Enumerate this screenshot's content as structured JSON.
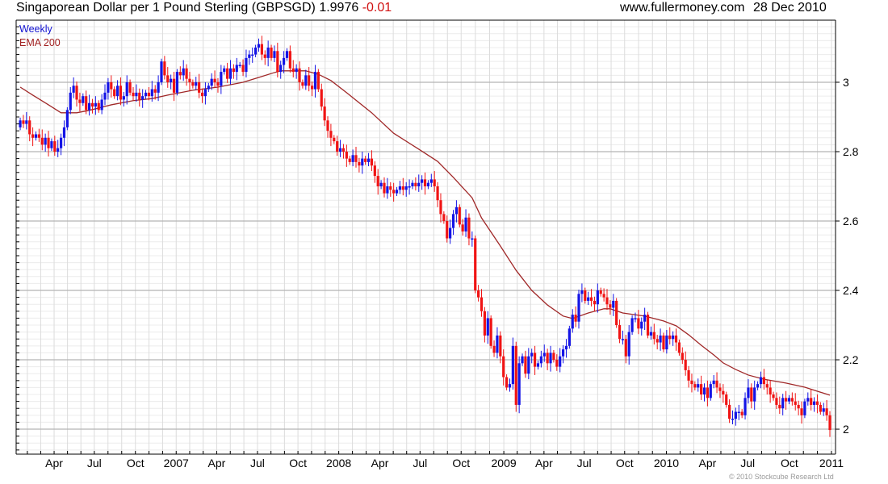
{
  "header": {
    "title": "Singaporean Dollar per 1 Pound Sterling (GBPSGD)",
    "last": "1.9976",
    "change": "-0.01",
    "site": "www.fullermoney.com",
    "date": "28 Dec 2010"
  },
  "footer": "© 2010 Stockcube Research Ltd",
  "colors": {
    "up": "#1414e6",
    "down": "#f01414",
    "ema": "#a02828",
    "change": "#d01010"
  },
  "chart_data": {
    "type": "candlestick",
    "title": "Singaporean Dollar per 1 Pound Sterling (GBPSGD)",
    "legend": [
      "Weekly",
      "EMA 200"
    ],
    "legend_placement": "top-left",
    "ylim": [
      1.928,
      3.179
    ],
    "yticks": [
      2,
      2.2,
      2.4,
      2.6,
      2.8,
      3
    ],
    "ytick_labels": [
      "2",
      "2.2",
      "2.4",
      "2.6",
      "2.8",
      "3"
    ],
    "minor_grid_step": 0.02,
    "grid": true,
    "xlim_weeks": [
      -1.3,
      259.8
    ],
    "xticks": [
      {
        "label": "Apr",
        "week": 10.8
      },
      {
        "label": "Jul",
        "week": 23.6
      },
      {
        "label": "Oct",
        "week": 36.7
      },
      {
        "label": "2007",
        "week": 49.7
      },
      {
        "label": "Apr",
        "week": 62.6
      },
      {
        "label": "Jul",
        "week": 75.6
      },
      {
        "label": "Oct",
        "week": 88.5
      },
      {
        "label": "2008",
        "week": 101.5
      },
      {
        "label": "Apr",
        "week": 114.6
      },
      {
        "label": "Jul",
        "week": 127.4
      },
      {
        "label": "Oct",
        "week": 140.5
      },
      {
        "label": "2009",
        "week": 154.1
      },
      {
        "label": "Apr",
        "week": 166.9
      },
      {
        "label": "Jul",
        "week": 179.7
      },
      {
        "label": "Oct",
        "week": 192.6
      },
      {
        "label": "2010",
        "week": 205.9
      },
      {
        "label": "Apr",
        "week": 219
      },
      {
        "label": "Jul",
        "week": 231.8
      },
      {
        "label": "Oct",
        "week": 245.1
      },
      {
        "label": "2011",
        "week": 258.5
      }
    ],
    "first_open": 2.87,
    "weekly_close": [
      2.89,
      2.88,
      2.89,
      2.85,
      2.84,
      2.85,
      2.84,
      2.82,
      2.84,
      2.81,
      2.83,
      2.8,
      2.81,
      2.84,
      2.87,
      2.92,
      2.97,
      2.99,
      2.95,
      2.94,
      2.96,
      2.92,
      2.94,
      2.93,
      2.94,
      2.92,
      2.95,
      2.97,
      3.0,
      2.98,
      2.96,
      2.99,
      2.95,
      2.96,
      3.0,
      2.97,
      2.96,
      2.97,
      2.95,
      2.96,
      2.97,
      2.96,
      2.98,
      2.97,
      3.0,
      3.06,
      3.02,
      3.0,
      3.01,
      2.97,
      3.03,
      3.02,
      3.04,
      3.01,
      3.0,
      2.99,
      3.0,
      2.97,
      2.96,
      2.98,
      2.99,
      3.01,
      3.0,
      2.99,
      3.03,
      3.04,
      3.01,
      3.04,
      3.03,
      3.05,
      3.05,
      3.03,
      3.07,
      3.08,
      3.08,
      3.1,
      3.11,
      3.08,
      3.07,
      3.1,
      3.07,
      3.09,
      3.03,
      3.05,
      3.07,
      3.09,
      3.04,
      3.03,
      3.04,
      3.0,
      2.99,
      3.02,
      2.99,
      2.98,
      3.03,
      2.98,
      2.93,
      2.89,
      2.86,
      2.84,
      2.83,
      2.8,
      2.81,
      2.8,
      2.78,
      2.77,
      2.79,
      2.77,
      2.76,
      2.78,
      2.77,
      2.78,
      2.76,
      2.73,
      2.7,
      2.71,
      2.68,
      2.7,
      2.69,
      2.68,
      2.69,
      2.7,
      2.69,
      2.7,
      2.7,
      2.71,
      2.7,
      2.71,
      2.72,
      2.7,
      2.71,
      2.72,
      2.7,
      2.66,
      2.62,
      2.6,
      2.55,
      2.58,
      2.62,
      2.64,
      2.59,
      2.57,
      2.61,
      2.55,
      2.55,
      2.4,
      2.38,
      2.34,
      2.27,
      2.32,
      2.24,
      2.22,
      2.27,
      2.21,
      2.15,
      2.12,
      2.13,
      2.24,
      2.07,
      2.19,
      2.21,
      2.16,
      2.21,
      2.22,
      2.18,
      2.19,
      2.21,
      2.22,
      2.19,
      2.22,
      2.2,
      2.18,
      2.21,
      2.23,
      2.24,
      2.29,
      2.33,
      2.31,
      2.39,
      2.4,
      2.37,
      2.38,
      2.37,
      2.36,
      2.4,
      2.39,
      2.38,
      2.36,
      2.35,
      2.37,
      2.3,
      2.26,
      2.26,
      2.21,
      2.28,
      2.32,
      2.32,
      2.29,
      2.31,
      2.33,
      2.27,
      2.28,
      2.26,
      2.25,
      2.27,
      2.23,
      2.27,
      2.26,
      2.27,
      2.25,
      2.22,
      2.2,
      2.17,
      2.14,
      2.13,
      2.12,
      2.13,
      2.1,
      2.12,
      2.09,
      2.13,
      2.14,
      2.12,
      2.11,
      2.1,
      2.07,
      2.03,
      2.03,
      2.05,
      2.05,
      2.04,
      2.09,
      2.12,
      2.08,
      2.12,
      2.13,
      2.15,
      2.13,
      2.12,
      2.1,
      2.09,
      2.07,
      2.06,
      2.09,
      2.08,
      2.09,
      2.08,
      2.07,
      2.06,
      2.04,
      2.08,
      2.09,
      2.07,
      2.08,
      2.07,
      2.05,
      2.06,
      2.04,
      1.9976
    ],
    "ema200": [
      [
        0,
        2.986
      ],
      [
        4,
        2.963
      ],
      [
        9,
        2.935
      ],
      [
        13,
        2.912
      ],
      [
        18,
        2.912
      ],
      [
        22,
        2.919
      ],
      [
        29,
        2.935
      ],
      [
        36,
        2.947
      ],
      [
        42,
        2.953
      ],
      [
        47,
        2.963
      ],
      [
        55,
        2.977
      ],
      [
        63,
        2.986
      ],
      [
        71,
        3.0
      ],
      [
        76,
        3.014
      ],
      [
        81,
        3.028
      ],
      [
        83,
        3.033
      ],
      [
        91,
        3.033
      ],
      [
        95,
        3.023
      ],
      [
        99,
        3.005
      ],
      [
        104,
        2.97
      ],
      [
        112,
        2.912
      ],
      [
        119,
        2.853
      ],
      [
        127,
        2.807
      ],
      [
        133,
        2.772
      ],
      [
        138,
        2.726
      ],
      [
        144,
        2.667
      ],
      [
        147,
        2.609
      ],
      [
        153,
        2.528
      ],
      [
        158,
        2.458
      ],
      [
        163,
        2.4
      ],
      [
        168,
        2.358
      ],
      [
        173,
        2.326
      ],
      [
        176,
        2.319
      ],
      [
        181,
        2.335
      ],
      [
        186,
        2.347
      ],
      [
        188,
        2.347
      ],
      [
        192,
        2.335
      ],
      [
        199,
        2.326
      ],
      [
        205,
        2.312
      ],
      [
        209,
        2.298
      ],
      [
        213,
        2.272
      ],
      [
        217,
        2.242
      ],
      [
        221,
        2.214
      ],
      [
        224,
        2.191
      ],
      [
        228,
        2.172
      ],
      [
        232,
        2.156
      ],
      [
        237,
        2.144
      ],
      [
        244,
        2.133
      ],
      [
        250,
        2.121
      ],
      [
        258,
        2.098
      ]
    ]
  }
}
